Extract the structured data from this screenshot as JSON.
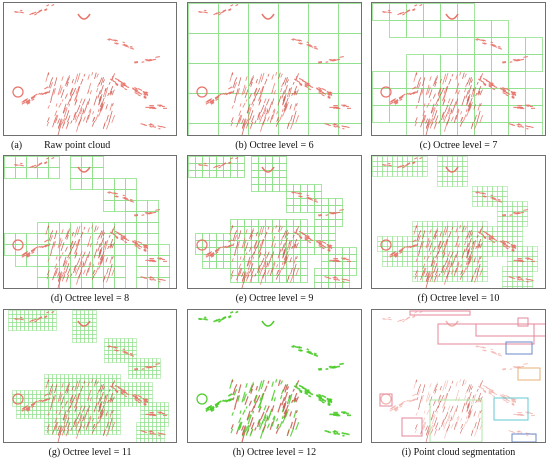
{
  "figure": {
    "panels": [
      {
        "id": "a",
        "label": "(a)",
        "caption": "Raw point cloud",
        "mode": "raw"
      },
      {
        "id": "b",
        "caption": "(b) Octree level = 6",
        "mode": "octree",
        "level": 6
      },
      {
        "id": "c",
        "caption": "(c) Octree level = 7",
        "mode": "octree",
        "level": 7
      },
      {
        "id": "d",
        "caption": "(d) Octree level = 8",
        "mode": "octree",
        "level": 8
      },
      {
        "id": "e",
        "caption": "(e) Octree level = 9",
        "mode": "octree",
        "level": 9
      },
      {
        "id": "f",
        "caption": "(f) Octree level = 10",
        "mode": "octree",
        "level": 10
      },
      {
        "id": "g",
        "caption": "(g) Octree level = 11",
        "mode": "octree",
        "level": 11
      },
      {
        "id": "h",
        "caption": "(h) Octree level = 12",
        "mode": "green"
      },
      {
        "id": "i",
        "caption": "(i) Point cloud segmentation",
        "mode": "segmentation"
      }
    ],
    "colors": {
      "points": "#e8736a",
      "points_dark": "#c9544a",
      "octree_grid": "#8fe08a",
      "level12_points": "#4ccc2a",
      "segment_box": "#e4879a",
      "segment_green": "#aee8a5",
      "segment_cyan": "#63c9d0",
      "segment_blue": "#6b88c9",
      "segment_orange": "#eab07a",
      "frame_border": "#6f6f6f"
    }
  }
}
